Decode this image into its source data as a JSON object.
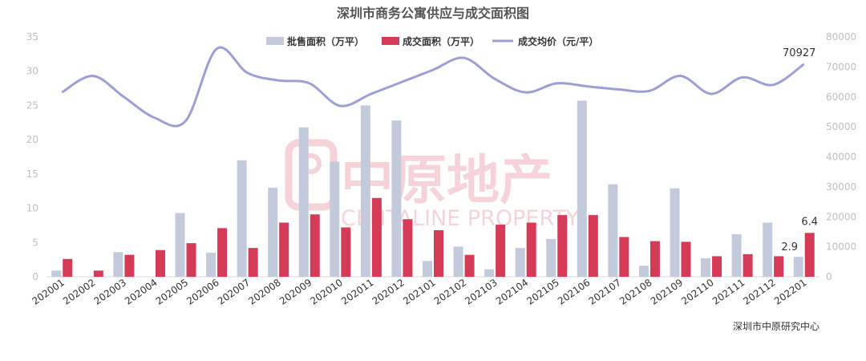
{
  "chart_data": {
    "type": "bar",
    "title": "深圳市商务公寓供应与成交面积图",
    "categories": [
      "202001",
      "202002",
      "202003",
      "202004",
      "202005",
      "202006",
      "202007",
      "202008",
      "202009",
      "202010",
      "202011",
      "202012",
      "202101",
      "202102",
      "202103",
      "202104",
      "202105",
      "202106",
      "202107",
      "202108",
      "202109",
      "202110",
      "202111",
      "202112",
      "202201"
    ],
    "series": [
      {
        "name": "批售面积（万平）",
        "kind": "bar",
        "axis": "left",
        "color": "#c3cadb",
        "values": [
          0.9,
          0,
          3.6,
          0,
          9.3,
          3.5,
          17,
          13,
          21.8,
          16.8,
          25,
          22.8,
          2.3,
          4.4,
          1.1,
          4.2,
          5.5,
          25.7,
          13.5,
          1.6,
          12.9,
          2.7,
          6.2,
          7.9,
          2.9
        ]
      },
      {
        "name": "成交面积（万平）",
        "kind": "bar",
        "axis": "left",
        "color": "#d53a57",
        "values": [
          2.6,
          0.9,
          3.2,
          3.9,
          4.9,
          7.1,
          4.2,
          7.9,
          9.1,
          7.2,
          11.5,
          8.4,
          6.8,
          3.2,
          7.6,
          7.9,
          9.0,
          9.0,
          5.8,
          5.2,
          5.1,
          3.0,
          3.3,
          3.0,
          6.4
        ]
      },
      {
        "name": "成交均价（元/平）",
        "kind": "line",
        "axis": "right",
        "color": "#9b9fd6",
        "values": [
          61500,
          67000,
          60000,
          53000,
          52000,
          76000,
          68000,
          65500,
          64500,
          57000,
          61000,
          65000,
          69000,
          73000,
          66000,
          61500,
          64500,
          63500,
          62500,
          62000,
          67000,
          61000,
          66500,
          64000,
          70927
        ]
      }
    ],
    "ylim_left": [
      0,
      35
    ],
    "yticks_left": [
      0,
      5,
      10,
      15,
      20,
      25,
      30,
      35
    ],
    "ylim_right": [
      0,
      80000
    ],
    "yticks_right": [
      0,
      10000,
      20000,
      30000,
      40000,
      50000,
      60000,
      70000,
      80000
    ],
    "data_labels": {
      "last_line": "70927",
      "last_supply": "2.9",
      "last_deal": "6.4"
    },
    "legend_position": "top-center",
    "grid": false,
    "source": "深圳市中原研究中心",
    "watermark": {
      "cn": "中原地产",
      "en": "CENTALINE PROPERTY"
    }
  }
}
